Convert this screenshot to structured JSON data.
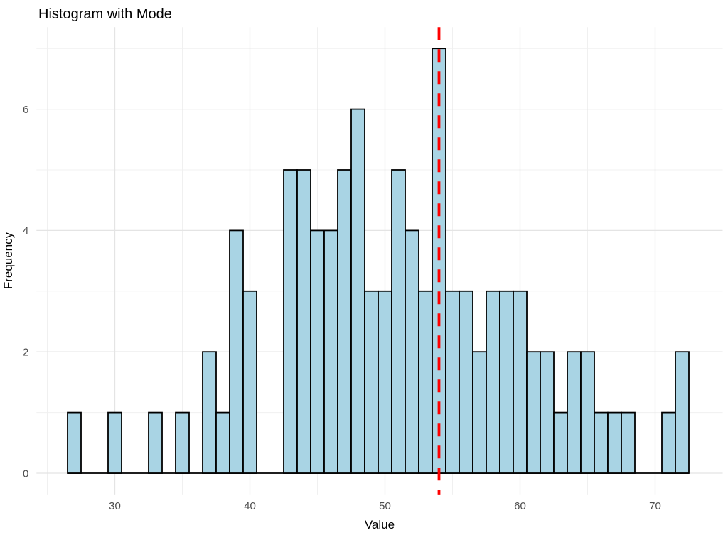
{
  "chart_data": {
    "type": "bar",
    "subtype": "histogram",
    "title": "Histogram with Mode",
    "xlabel": "Value",
    "ylabel": "Frequency",
    "binwidth": 1,
    "bins": [
      {
        "x": 27,
        "count": 1
      },
      {
        "x": 28,
        "count": 0
      },
      {
        "x": 29,
        "count": 0
      },
      {
        "x": 30,
        "count": 1
      },
      {
        "x": 31,
        "count": 0
      },
      {
        "x": 32,
        "count": 0
      },
      {
        "x": 33,
        "count": 1
      },
      {
        "x": 34,
        "count": 0
      },
      {
        "x": 35,
        "count": 1
      },
      {
        "x": 36,
        "count": 0
      },
      {
        "x": 37,
        "count": 2
      },
      {
        "x": 38,
        "count": 1
      },
      {
        "x": 39,
        "count": 4
      },
      {
        "x": 40,
        "count": 3
      },
      {
        "x": 41,
        "count": 0
      },
      {
        "x": 42,
        "count": 0
      },
      {
        "x": 43,
        "count": 5
      },
      {
        "x": 44,
        "count": 5
      },
      {
        "x": 45,
        "count": 4
      },
      {
        "x": 46,
        "count": 4
      },
      {
        "x": 47,
        "count": 5
      },
      {
        "x": 48,
        "count": 6
      },
      {
        "x": 49,
        "count": 3
      },
      {
        "x": 50,
        "count": 3
      },
      {
        "x": 51,
        "count": 5
      },
      {
        "x": 52,
        "count": 4
      },
      {
        "x": 53,
        "count": 3
      },
      {
        "x": 54,
        "count": 7
      },
      {
        "x": 55,
        "count": 3
      },
      {
        "x": 56,
        "count": 3
      },
      {
        "x": 57,
        "count": 2
      },
      {
        "x": 58,
        "count": 3
      },
      {
        "x": 59,
        "count": 3
      },
      {
        "x": 60,
        "count": 3
      },
      {
        "x": 61,
        "count": 2
      },
      {
        "x": 62,
        "count": 2
      },
      {
        "x": 63,
        "count": 1
      },
      {
        "x": 64,
        "count": 2
      },
      {
        "x": 65,
        "count": 2
      },
      {
        "x": 66,
        "count": 1
      },
      {
        "x": 67,
        "count": 1
      },
      {
        "x": 68,
        "count": 1
      },
      {
        "x": 69,
        "count": 0
      },
      {
        "x": 70,
        "count": 0
      },
      {
        "x": 71,
        "count": 1
      },
      {
        "x": 72,
        "count": 2
      }
    ],
    "mode_line": {
      "x": 54,
      "color": "#FF0000",
      "style": "dashed"
    },
    "x_ticks": [
      30,
      40,
      50,
      60,
      70
    ],
    "y_ticks": [
      0,
      2,
      4,
      6
    ],
    "x_minor_gridlines": [
      25,
      35,
      45,
      55,
      65
    ],
    "y_minor_gridlines": [
      1,
      3,
      5,
      7
    ],
    "xlim": [
      24.2,
      75
    ],
    "ylim": [
      -0.35,
      7.35
    ],
    "grid": "on",
    "legend": "none",
    "colors": {
      "bar_fill": "#A9D4E4",
      "bar_stroke": "#000000",
      "grid_major": "#E4E4E4",
      "grid_minor": "#F0F0F0",
      "tick_text": "#4d4d4d",
      "background": "#FFFFFF"
    }
  }
}
